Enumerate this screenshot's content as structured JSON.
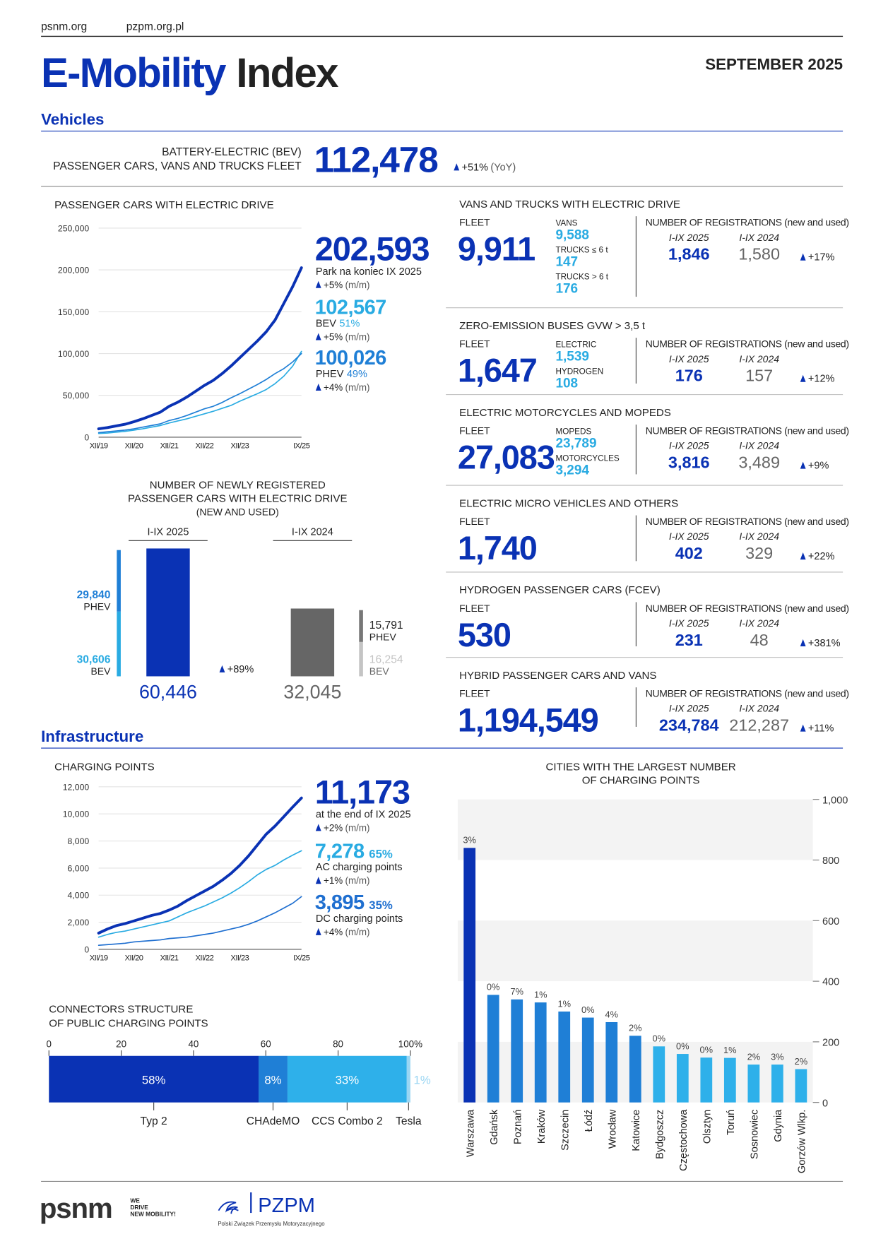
{
  "header": {
    "links": [
      "psnm.org",
      "pzpm.org.pl"
    ],
    "title": "E-Mobility",
    "title_2": "Index",
    "date": "SEPTEMBER 2025"
  },
  "sections": [
    "Vehicles",
    "Infrastructure"
  ],
  "bev_fleet": {
    "label": [
      "BATTERY-ELECTRIC (BEV)",
      "PASSENGER CARS, VANS AND TRUCKS FLEET"
    ],
    "value": "112,478",
    "change": "+51%",
    "period": "(YoY)"
  },
  "panels": [
    {
      "title": "VANS AND TRUCKS WITH ELECTRIC DRIVE",
      "fleet_label": "FLEET",
      "fleet": "9,911",
      "parts": [
        {
          "label": "VANS",
          "value": "9,588"
        },
        {
          "label": "TRUCKS ≤ 6 t",
          "value": "147"
        },
        {
          "label": "TRUCKS > 6 t",
          "value": "176"
        }
      ],
      "reg_label": "NUMBER OF REGISTRATIONS (new and used)",
      "years": [
        "I-IX 2025",
        "I-IX 2024"
      ],
      "reg": [
        "1,846",
        "1,580"
      ],
      "change": "+17%"
    },
    {
      "title": "ZERO-EMISSION BUSES",
      "title_note": "GVW > 3,5 t",
      "fleet_label": "FLEET",
      "fleet": "1,647",
      "parts": [
        {
          "label": "ELECTRIC",
          "value": "1,539"
        },
        {
          "label": "HYDROGEN",
          "value": "108"
        }
      ],
      "reg_label": "NUMBER OF REGISTRATIONS (new and used)",
      "years": [
        "I-IX 2025",
        "I-IX 2024"
      ],
      "reg": [
        "176",
        "157"
      ],
      "change": "+12%"
    },
    {
      "title": "ELECTRIC MOTORCYCLES AND MOPEDS",
      "fleet_label": "FLEET",
      "fleet": "27,083",
      "parts": [
        {
          "label": "MOPEDS",
          "value": "23,789"
        },
        {
          "label": "MOTORCYCLES",
          "value": "3,294"
        }
      ],
      "reg_label": "NUMBER OF REGISTRATIONS (new and used)",
      "years": [
        "I-IX 2025",
        "I-IX 2024"
      ],
      "reg": [
        "3,816",
        "3,489"
      ],
      "change": "+9%"
    },
    {
      "title": "ELECTRIC MICRO VEHICLES AND OTHERS",
      "fleet_label": "FLEET",
      "fleet": "1,740",
      "reg_label": "NUMBER OF REGISTRATIONS (new and used)",
      "years": [
        "I-IX 2025",
        "I-IX 2024"
      ],
      "reg": [
        "402",
        "329"
      ],
      "change": "+22%"
    },
    {
      "title": "HYDROGEN PASSENGER CARS (FCEV)",
      "fleet_label": "FLEET",
      "fleet": "530",
      "reg_label": "NUMBER OF REGISTRATIONS (new and used)",
      "years": [
        "I-IX 2025",
        "I-IX 2024"
      ],
      "reg": [
        "231",
        "48"
      ],
      "change": "+381%"
    },
    {
      "title": "HYBRID PASSENGER CARS AND VANS",
      "fleet_label": "FLEET",
      "fleet": "1,194,549",
      "reg_label": "NUMBER OF REGISTRATIONS (new and used)",
      "years": [
        "I-IX 2025",
        "I-IX 2024"
      ],
      "reg": [
        "234,784",
        "212,287"
      ],
      "change": "+11%"
    }
  ],
  "chart_data": [
    {
      "type": "line",
      "title": "PASSENGER CARS WITH ELECTRIC DRIVE",
      "categories": [
        "XII/19",
        null,
        null,
        null,
        "XII/20",
        null,
        null,
        null,
        "XII/21",
        null,
        null,
        null,
        "XII/22",
        null,
        null,
        null,
        "XII/23",
        null,
        null,
        null,
        null,
        null,
        null,
        "IX/25"
      ],
      "series": [
        {
          "name": "Park na koniec IX 2025",
          "color": "#0a32b4",
          "latest": "202,593",
          "change": "+5%",
          "period": "(m/m)",
          "values": [
            10000,
            11500,
            13500,
            15500,
            18500,
            22000,
            26000,
            30000,
            37000,
            42000,
            48000,
            55000,
            62000,
            68000,
            76000,
            85000,
            95000,
            105000,
            115000,
            126000,
            140000,
            160000,
            180000,
            202593
          ]
        },
        {
          "name": "BEV",
          "share": "51%",
          "color": "#29abe2",
          "latest": "102,567",
          "change": "+5%",
          "period": "(m/m)",
          "values": [
            4500,
            5000,
            6000,
            7000,
            8500,
            10000,
            12000,
            14000,
            17000,
            19500,
            22000,
            25000,
            28000,
            31000,
            34500,
            38000,
            43000,
            47500,
            52000,
            57000,
            64000,
            73000,
            85000,
            102567
          ]
        },
        {
          "name": "PHEV",
          "share": "49%",
          "color": "#1f7fd6",
          "latest": "100,026",
          "change": "+4%",
          "period": "(m/m)",
          "values": [
            5500,
            6500,
            7500,
            8500,
            10000,
            12000,
            14000,
            16000,
            20000,
            22500,
            26000,
            30000,
            34000,
            37000,
            41500,
            47000,
            52000,
            57500,
            63000,
            69000,
            76000,
            82000,
            90000,
            100026
          ]
        }
      ],
      "ylim": [
        0,
        250000
      ],
      "yticks": [
        0,
        {
          "value": 50000,
          "label": "50,000"
        },
        {
          "value": 100000,
          "label": "100,000"
        },
        {
          "value": 150000,
          "label": "150,000"
        },
        {
          "value": 200000,
          "label": "200,000"
        },
        {
          "value": 250000,
          "label": "250,000"
        }
      ],
      "grid": true
    },
    {
      "type": "split_bar",
      "title": [
        "NUMBER OF NEWLY REGISTERED",
        "PASSENGER CARS WITH ELECTRIC DRIVE",
        "(NEW AND USED)"
      ],
      "categories": [
        "I-IX 2025",
        "I-IX 2024"
      ],
      "values": [
        60446,
        32045
      ],
      "value_labels": [
        "60,446",
        "32,045"
      ],
      "colors": [
        "#0a32b4",
        "#666666"
      ],
      "series": [
        {
          "name": "PHEV",
          "values": [
            29840,
            15791
          ],
          "value_labels": [
            "29,840",
            "15,791"
          ],
          "colors": [
            "#1f7fd6",
            "#777777"
          ]
        },
        {
          "name": "BEV",
          "values": [
            30606,
            16254
          ],
          "value_labels": [
            "30,606",
            "16,254"
          ],
          "colors": [
            "#29abe2",
            "#c4c4c4"
          ]
        }
      ],
      "change": "+89%"
    },
    {
      "type": "line",
      "title": "CHARGING POINTS",
      "categories": [
        "XII/19",
        null,
        null,
        null,
        "XII/20",
        null,
        null,
        null,
        "XII/21",
        null,
        null,
        null,
        "XII/22",
        null,
        null,
        null,
        "XII/23",
        null,
        null,
        null,
        null,
        null,
        null,
        "IX/25"
      ],
      "series": [
        {
          "name": "at the end of IX 2025",
          "color": "#0a32b4",
          "latest": "11,173",
          "change": "+2%",
          "period": "(m/m)",
          "values": [
            1200,
            1500,
            1750,
            1900,
            2100,
            2300,
            2500,
            2650,
            2900,
            3200,
            3600,
            3950,
            4300,
            4650,
            5100,
            5600,
            6200,
            6900,
            7700,
            8500,
            9100,
            9800,
            10500,
            11173
          ]
        },
        {
          "name": "AC charging points",
          "share": "65%",
          "color": "#29abe2",
          "latest": "7,278",
          "change": "+1%",
          "period": "(m/m)",
          "values": [
            900,
            1100,
            1250,
            1350,
            1500,
            1650,
            1800,
            1950,
            2100,
            2400,
            2700,
            2950,
            3200,
            3500,
            3800,
            4150,
            4550,
            5000,
            5500,
            5900,
            6200,
            6600,
            6950,
            7278
          ]
        },
        {
          "name": "DC charging points",
          "share": "35%",
          "color": "#1f6fd0",
          "latest": "3,895",
          "change": "+4%",
          "period": "(m/m)",
          "values": [
            300,
            350,
            400,
            450,
            550,
            600,
            650,
            700,
            800,
            850,
            900,
            1000,
            1100,
            1200,
            1350,
            1500,
            1650,
            1850,
            2100,
            2400,
            2700,
            3050,
            3400,
            3895
          ]
        }
      ],
      "ylim": [
        0,
        12000
      ],
      "yticks": [
        0,
        {
          "value": 2000,
          "label": "2,000"
        },
        {
          "value": 4000,
          "label": "4,000"
        },
        {
          "value": 6000,
          "label": "6,000"
        },
        {
          "value": 8000,
          "label": "8,000"
        },
        {
          "value": 10000,
          "label": "10,000"
        },
        {
          "value": 12000,
          "label": "12,000"
        }
      ],
      "grid": true
    },
    {
      "type": "stacked_bar",
      "title": [
        "CONNECTORS STRUCTURE",
        "OF PUBLIC CHARGING POINTS"
      ],
      "categories": [
        "Typ 2",
        "CHAdeMO",
        "CCS Combo 2",
        "Tesla"
      ],
      "values": [
        58,
        8,
        33,
        1
      ],
      "value_labels": [
        "58%",
        "8%",
        "33%",
        "1%"
      ],
      "colors": [
        "#0a32b4",
        "#1f7fd6",
        "#2eb0ea",
        "#9ad6f3"
      ],
      "xlim": [
        0,
        100
      ],
      "xticks": [
        0,
        20,
        40,
        60,
        80,
        {
          "value": 100,
          "label": "100%"
        }
      ]
    },
    {
      "type": "bar",
      "title": [
        "CITIES WITH THE LARGEST NUMBER",
        "OF CHARGING POINTS"
      ],
      "categories": [
        "Warszawa",
        "Gdańsk",
        "Poznań",
        "Kraków",
        "Szczecin",
        "Łódź",
        "Wrocław",
        "Katowice",
        "Bydgoszcz",
        "Częstochowa",
        "Olsztyn",
        "Toruń",
        "Sosnowiec",
        "Gdynia",
        "Gorzów Wlkp."
      ],
      "values": [
        840,
        355,
        340,
        330,
        300,
        280,
        265,
        220,
        185,
        160,
        148,
        147,
        125,
        125,
        110
      ],
      "change_labels": [
        "3%",
        "0%",
        "7%",
        "1%",
        "1%",
        "0%",
        "4%",
        "2%",
        "0%",
        "0%",
        "0%",
        "1%",
        "2%",
        "3%",
        "2%"
      ],
      "colors": [
        "#0a32b4",
        "#1f7fd6",
        "#1f7fd6",
        "#1f7fd6",
        "#1f7fd6",
        "#1f7fd6",
        "#1f7fd6",
        "#1f7fd6",
        "#2eb0ea",
        "#2eb0ea",
        "#2eb0ea",
        "#2eb0ea",
        "#2eb0ea",
        "#2eb0ea",
        "#2eb0ea"
      ],
      "ylim": [
        0,
        1000
      ],
      "yticks": [
        0,
        200,
        400,
        600,
        800,
        {
          "value": 1000,
          "label": "1,000"
        }
      ],
      "bands": true
    }
  ],
  "footer": {
    "psnm": "psnm",
    "tagline": [
      "WE",
      "DRIVE",
      "NEW MOBILITY!"
    ],
    "pzpm": "PZPM",
    "pzpm_name": "Polski Związek Przemysłu Motoryzacyjnego"
  }
}
